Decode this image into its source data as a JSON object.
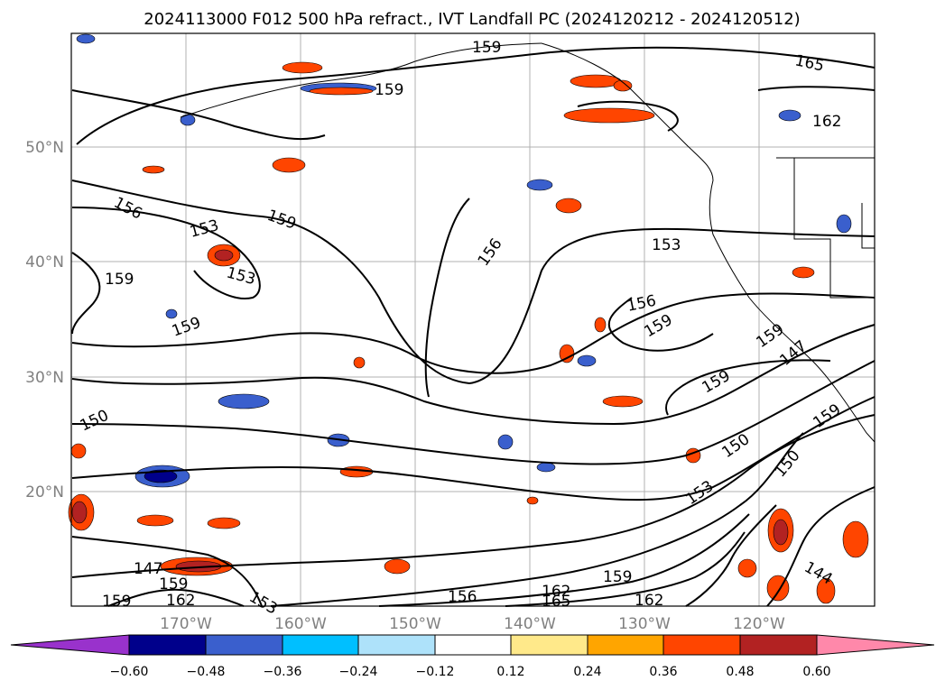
{
  "title": "2024113000 F012 500 hPa refract., IVT Landfall PC (2024120212 - 2024120512)",
  "lat_labels": [
    "50°N",
    "40°N",
    "30°N",
    "20°N"
  ],
  "lon_labels": [
    "170°W",
    "160°W",
    "150°W",
    "140°W",
    "130°W",
    "120°W"
  ],
  "contour_labels": [
    "159",
    "159",
    "165",
    "162",
    "156",
    "153",
    "159",
    "153",
    "159",
    "156",
    "153",
    "159",
    "156",
    "159",
    "159",
    "159",
    "150",
    "150",
    "150",
    "153",
    "147",
    "147",
    "159",
    "162",
    "159",
    "153",
    "156",
    "162",
    "165",
    "159",
    "162",
    "144",
    "159"
  ],
  "colorbar": {
    "ticks": [
      "−0.60",
      "−0.48",
      "−0.36",
      "−0.24",
      "−0.12",
      "0.12",
      "0.24",
      "0.36",
      "0.48",
      "0.60"
    ],
    "colors": [
      "#9932cc",
      "#00008b",
      "#3a5fcd",
      "#00bfff",
      "#aee2fa",
      "#ffffff",
      "#ffe98a",
      "#ffa500",
      "#ff4500",
      "#b22222",
      "#ff88aa"
    ]
  },
  "colors": {
    "grid": "#b0b0b0",
    "contour": "#000000",
    "frame": "#000000"
  }
}
